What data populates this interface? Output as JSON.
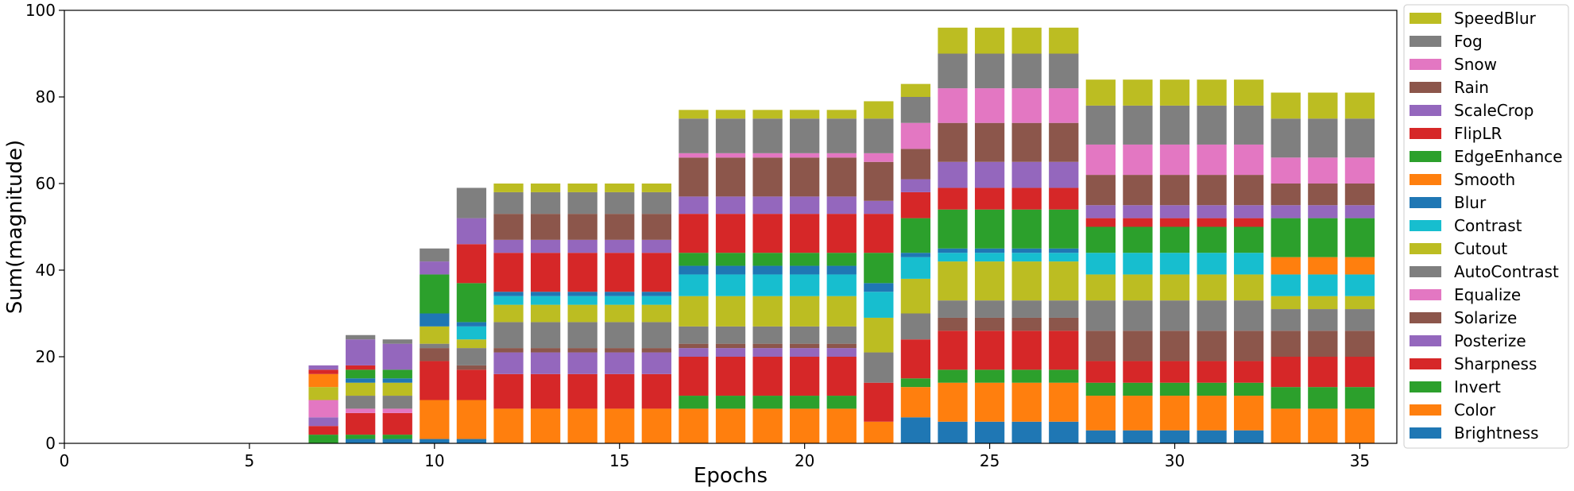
{
  "chart_data": {
    "type": "bar",
    "stacked": true,
    "xlabel": "Epochs",
    "ylabel": "Sum(magnitude)",
    "xlim": [
      0,
      36
    ],
    "ylim": [
      0,
      100
    ],
    "xticks": [
      0,
      5,
      10,
      15,
      20,
      25,
      30,
      35
    ],
    "yticks": [
      0,
      20,
      40,
      60,
      80,
      100
    ],
    "grid": false,
    "legend_position": "right",
    "x": [
      7,
      8,
      9,
      10,
      11,
      12,
      13,
      14,
      15,
      16,
      17,
      18,
      19,
      20,
      21,
      22,
      23,
      24,
      25,
      26,
      27,
      28,
      29,
      30,
      31,
      32,
      33,
      34,
      35
    ],
    "series": [
      {
        "name": "Brightness",
        "color": "#1f77b4",
        "values": [
          0,
          1,
          1,
          1,
          1,
          0,
          0,
          0,
          0,
          0,
          0,
          0,
          0,
          0,
          0,
          0,
          6,
          5,
          5,
          5,
          5,
          3,
          3,
          3,
          3,
          3,
          0,
          0,
          0
        ]
      },
      {
        "name": "Color",
        "color": "#ff7f0e",
        "values": [
          0,
          0,
          0,
          9,
          9,
          8,
          8,
          8,
          8,
          8,
          8,
          8,
          8,
          8,
          8,
          5,
          7,
          9,
          9,
          9,
          9,
          8,
          8,
          8,
          8,
          8,
          8,
          8,
          8
        ]
      },
      {
        "name": "Invert",
        "color": "#2ca02c",
        "values": [
          2,
          1,
          1,
          0,
          0,
          0,
          0,
          0,
          0,
          0,
          3,
          3,
          3,
          3,
          3,
          0,
          2,
          3,
          3,
          3,
          3,
          3,
          3,
          3,
          3,
          3,
          5,
          5,
          5
        ]
      },
      {
        "name": "Sharpness",
        "color": "#d62728",
        "values": [
          2,
          5,
          5,
          9,
          7,
          8,
          8,
          8,
          8,
          8,
          9,
          9,
          9,
          9,
          9,
          9,
          9,
          9,
          9,
          9,
          9,
          5,
          5,
          5,
          5,
          5,
          7,
          7,
          7
        ]
      },
      {
        "name": "Posterize",
        "color": "#9467bd",
        "values": [
          2,
          0,
          0,
          0,
          0,
          5,
          5,
          5,
          5,
          5,
          2,
          2,
          2,
          2,
          2,
          0,
          0,
          0,
          0,
          0,
          0,
          0,
          0,
          0,
          0,
          0,
          0,
          0,
          0
        ]
      },
      {
        "name": "Solarize",
        "color": "#8c564b",
        "values": [
          0,
          0,
          0,
          3,
          1,
          1,
          1,
          1,
          1,
          1,
          1,
          1,
          1,
          1,
          1,
          0,
          0,
          3,
          3,
          3,
          3,
          7,
          7,
          7,
          7,
          7,
          6,
          6,
          6
        ]
      },
      {
        "name": "Equalize",
        "color": "#e377c2",
        "values": [
          4,
          1,
          1,
          0,
          0,
          0,
          0,
          0,
          0,
          0,
          0,
          0,
          0,
          0,
          0,
          0,
          0,
          0,
          0,
          0,
          0,
          0,
          0,
          0,
          0,
          0,
          0,
          0,
          0
        ]
      },
      {
        "name": "AutoContrast",
        "color": "#7f7f7f",
        "values": [
          0,
          3,
          3,
          1,
          4,
          6,
          6,
          6,
          6,
          6,
          4,
          4,
          4,
          4,
          4,
          7,
          6,
          4,
          4,
          4,
          4,
          7,
          7,
          7,
          7,
          7,
          5,
          5,
          5
        ]
      },
      {
        "name": "Cutout",
        "color": "#bcbd22",
        "values": [
          3,
          3,
          3,
          4,
          2,
          4,
          4,
          4,
          4,
          4,
          7,
          7,
          7,
          7,
          7,
          8,
          8,
          9,
          9,
          9,
          9,
          6,
          6,
          6,
          6,
          6,
          3,
          3,
          3
        ]
      },
      {
        "name": "Contrast",
        "color": "#17becf",
        "values": [
          0,
          0,
          0,
          0,
          3,
          2,
          2,
          2,
          2,
          2,
          5,
          5,
          5,
          5,
          5,
          6,
          5,
          2,
          2,
          2,
          2,
          5,
          5,
          5,
          5,
          5,
          5,
          5,
          5
        ]
      },
      {
        "name": "Blur",
        "color": "#1f77b4",
        "values": [
          0,
          1,
          1,
          3,
          1,
          1,
          1,
          1,
          1,
          1,
          2,
          2,
          2,
          2,
          2,
          2,
          1,
          1,
          1,
          1,
          1,
          0,
          0,
          0,
          0,
          0,
          0,
          0,
          0
        ]
      },
      {
        "name": "Smooth",
        "color": "#ff7f0e",
        "values": [
          3,
          0,
          0,
          0,
          0,
          0,
          0,
          0,
          0,
          0,
          0,
          0,
          0,
          0,
          0,
          0,
          0,
          0,
          0,
          0,
          0,
          0,
          0,
          0,
          0,
          0,
          4,
          4,
          4
        ]
      },
      {
        "name": "EdgeEnhance",
        "color": "#2ca02c",
        "values": [
          0,
          2,
          2,
          9,
          9,
          0,
          0,
          0,
          0,
          0,
          3,
          3,
          3,
          3,
          3,
          7,
          8,
          9,
          9,
          9,
          9,
          6,
          6,
          6,
          6,
          6,
          9,
          9,
          9
        ]
      },
      {
        "name": "FlipLR",
        "color": "#d62728",
        "values": [
          1,
          1,
          0,
          0,
          9,
          9,
          9,
          9,
          9,
          9,
          9,
          9,
          9,
          9,
          9,
          9,
          6,
          5,
          5,
          5,
          5,
          2,
          2,
          2,
          2,
          2,
          0,
          0,
          0
        ]
      },
      {
        "name": "ScaleCrop",
        "color": "#9467bd",
        "values": [
          1,
          6,
          6,
          3,
          6,
          3,
          3,
          3,
          3,
          3,
          4,
          4,
          4,
          4,
          4,
          3,
          3,
          6,
          6,
          6,
          6,
          3,
          3,
          3,
          3,
          3,
          3,
          3,
          3
        ]
      },
      {
        "name": "Rain",
        "color": "#8c564b",
        "values": [
          0,
          0,
          0,
          0,
          0,
          6,
          6,
          6,
          6,
          6,
          9,
          9,
          9,
          9,
          9,
          9,
          7,
          9,
          9,
          9,
          9,
          7,
          7,
          7,
          7,
          7,
          5,
          5,
          5
        ]
      },
      {
        "name": "Snow",
        "color": "#e377c2",
        "values": [
          0,
          0,
          0,
          0,
          0,
          0,
          0,
          0,
          0,
          0,
          1,
          1,
          1,
          1,
          1,
          2,
          6,
          8,
          8,
          8,
          8,
          7,
          7,
          7,
          7,
          7,
          6,
          6,
          6
        ]
      },
      {
        "name": "Fog",
        "color": "#7f7f7f",
        "values": [
          0,
          1,
          1,
          3,
          7,
          5,
          5,
          5,
          5,
          5,
          8,
          8,
          8,
          8,
          8,
          8,
          6,
          8,
          8,
          8,
          8,
          9,
          9,
          9,
          9,
          9,
          9,
          9,
          9
        ]
      },
      {
        "name": "SpeedBlur",
        "color": "#bcbd22",
        "values": [
          0,
          0,
          0,
          0,
          0,
          2,
          2,
          2,
          2,
          2,
          2,
          2,
          2,
          2,
          2,
          4,
          3,
          6,
          6,
          6,
          6,
          6,
          6,
          6,
          6,
          6,
          6,
          6,
          6
        ]
      }
    ]
  }
}
